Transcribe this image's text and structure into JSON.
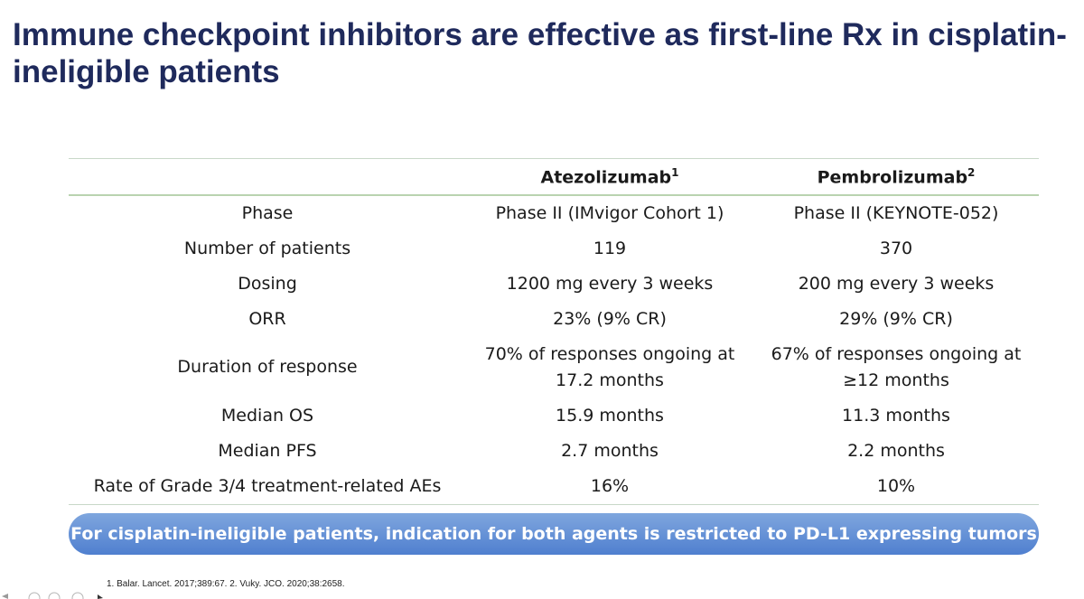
{
  "title": "Immune checkpoint inhibitors are effective as first-line Rx in cisplatin-ineligible patients",
  "table": {
    "headers": [
      {
        "label": "",
        "sup": ""
      },
      {
        "label": "Atezolizumab",
        "sup": "1"
      },
      {
        "label": "Pembrolizumab",
        "sup": "2"
      }
    ],
    "rows": [
      [
        "Phase",
        "Phase II (IMvigor Cohort 1)",
        "Phase II (KEYNOTE-052)"
      ],
      [
        "Number of patients",
        "119",
        "370"
      ],
      [
        "Dosing",
        "1200 mg every 3 weeks",
        "200 mg every 3 weeks"
      ],
      [
        "ORR",
        "23% (9% CR)",
        "29% (9% CR)"
      ],
      [
        "Duration of response",
        "70% of responses ongoing at 17.2 months",
        "67% of responses ongoing at ≥12 months"
      ],
      [
        "Median OS",
        "15.9 months",
        "11.3 months"
      ],
      [
        "Median PFS",
        "2.7 months",
        "2.2 months"
      ],
      [
        "Rate of Grade 3/4 treatment-related AEs",
        "16%",
        "10%"
      ]
    ]
  },
  "banner": "For cisplatin-ineligible patients, indication for both agents is restricted to PD-L1 expressing tumors",
  "footnote": "1. Balar. Lancet. 2017;389:67. 2. Vuky. JCO. 2020;38:2658.",
  "colors": {
    "title": "#1f2a5c",
    "banner_top": "#7fa6de",
    "banner_bottom": "#4f7fcf",
    "rule": "#b9d3b0"
  }
}
